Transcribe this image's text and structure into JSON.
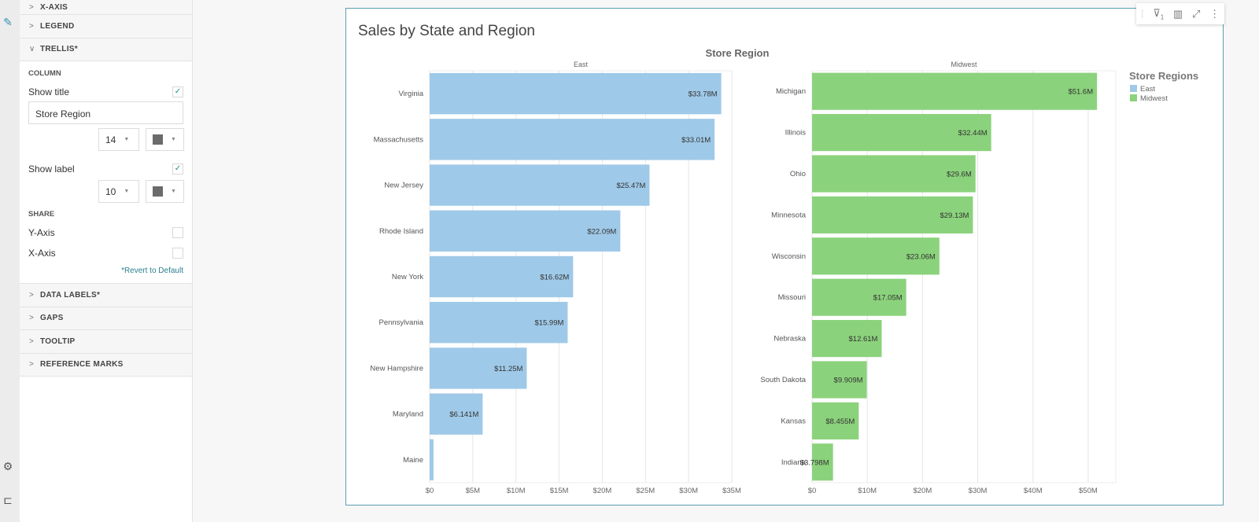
{
  "rail": {
    "icons": [
      "paintbrush-icon",
      "gear-icon",
      "hierarchy-icon"
    ]
  },
  "panel": {
    "sections_top": [
      {
        "label": "X-AXIS",
        "expanded": false
      },
      {
        "label": "LEGEND",
        "expanded": false
      },
      {
        "label": "TRELLIS*",
        "expanded": true
      }
    ],
    "trellis": {
      "column_heading": "COLUMN",
      "show_title_label": "Show title",
      "show_title_checked": true,
      "title_value": "Store Region",
      "title_font_size": "14",
      "title_color": "#6b6b6b",
      "show_label_label": "Show label",
      "show_label_checked": true,
      "label_font_size": "10",
      "label_color": "#6b6b6b",
      "share_heading": "SHARE",
      "share_y_label": "Y-Axis",
      "share_y_checked": false,
      "share_x_label": "X-Axis",
      "share_x_checked": false,
      "revert_label": "*Revert to Default"
    },
    "sections_bottom": [
      {
        "label": "DATA LABELS*"
      },
      {
        "label": "GAPS"
      },
      {
        "label": "TOOLTIP"
      },
      {
        "label": "REFERENCE MARKS"
      }
    ]
  },
  "card": {
    "title": "Sales by State and Region",
    "toolbar": {
      "filter_count": "1",
      "icons": [
        "drag-handle-icon",
        "filter-icon",
        "chart-settings-icon",
        "expand-icon",
        "more-icon"
      ]
    }
  },
  "chart_data": {
    "type": "bar",
    "orientation": "horizontal",
    "trellis": true,
    "column_title": "Store Region",
    "legend": {
      "title": "Store Regions",
      "placement": "right",
      "entries": [
        {
          "name": "East",
          "color": "#9fc9e8"
        },
        {
          "name": "Midwest",
          "color": "#8bd27c"
        }
      ]
    },
    "grid": true,
    "panels": [
      {
        "name": "East",
        "color": "#9fc9e8",
        "xlim": [
          0,
          35
        ],
        "ticks": [
          "$0",
          "$5M",
          "$10M",
          "$15M",
          "$20M",
          "$25M",
          "$30M",
          "$35M"
        ],
        "tick_values": [
          0,
          5,
          10,
          15,
          20,
          25,
          30,
          35
        ],
        "categories": [
          "Virginia",
          "Massachusetts",
          "New Jersey",
          "Rhode Island",
          "New York",
          "Pennsylvania",
          "New Hampshire",
          "Maryland",
          "Maine"
        ],
        "values": [
          33.78,
          33.01,
          25.47,
          22.09,
          16.62,
          15.99,
          11.25,
          6.141,
          0.45
        ],
        "labels": [
          "$33.78M",
          "$33.01M",
          "$25.47M",
          "$22.09M",
          "$16.62M",
          "$15.99M",
          "$11.25M",
          "$6.141M",
          ""
        ]
      },
      {
        "name": "Midwest",
        "color": "#8bd27c",
        "xlim": [
          0,
          55
        ],
        "ticks": [
          "$0",
          "$10M",
          "$20M",
          "$30M",
          "$40M",
          "$50M"
        ],
        "tick_values": [
          0,
          10,
          20,
          30,
          40,
          50
        ],
        "categories": [
          "Michigan",
          "Illinois",
          "Ohio",
          "Minnesota",
          "Wisconsin",
          "Missouri",
          "Nebraska",
          "South Dakota",
          "Kansas",
          "Indiana"
        ],
        "values": [
          51.6,
          32.44,
          29.6,
          29.13,
          23.06,
          17.05,
          12.61,
          9.909,
          8.455,
          3.798
        ],
        "labels": [
          "$51.6M",
          "$32.44M",
          "$29.6M",
          "$29.13M",
          "$23.06M",
          "$17.05M",
          "$12.61M",
          "$9.909M",
          "$8.455M",
          "$3.798M"
        ]
      }
    ]
  }
}
